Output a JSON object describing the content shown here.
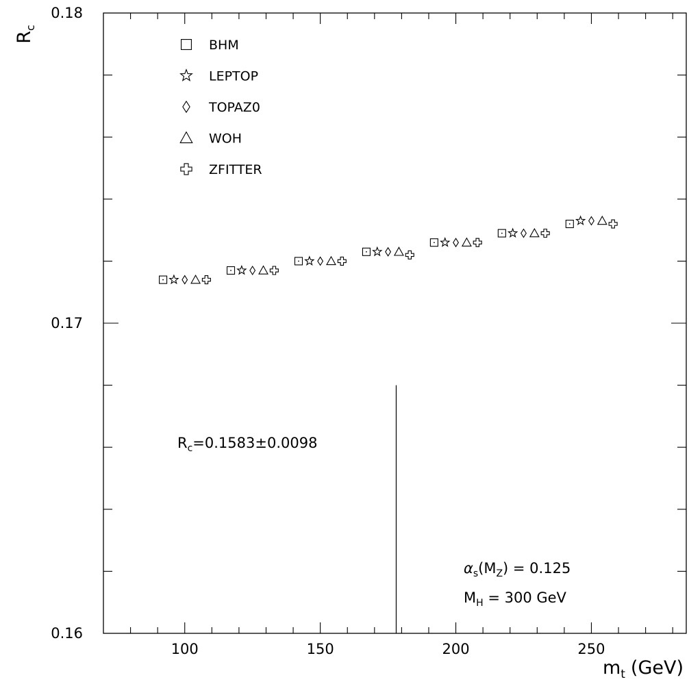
{
  "chart_data": {
    "type": "scatter",
    "ylabel_main": "R",
    "ylabel_sub": "c",
    "xlabel_main": "m",
    "xlabel_sub": "t",
    "xlabel_unit": "(GeV)",
    "xlim": [
      70,
      285
    ],
    "ylim": [
      0.16,
      0.18
    ],
    "x_ticks": [
      "100",
      "150",
      "200",
      "250"
    ],
    "y_ticks": [
      "0.16",
      "0.17",
      "0.18"
    ],
    "legend_position": "top-left",
    "series": [
      {
        "name": "BHM",
        "marker": "square",
        "x": [
          92,
          117,
          142,
          167,
          192,
          217,
          242
        ],
        "y": [
          0.1714,
          0.1717,
          0.172,
          0.1723,
          0.1726,
          0.1729,
          0.1732
        ]
      },
      {
        "name": "LEPTOP",
        "marker": "star",
        "x": [
          96,
          121,
          146,
          171,
          196,
          221,
          246
        ],
        "y": [
          0.1714,
          0.1717,
          0.172,
          0.1723,
          0.1726,
          0.1729,
          0.1733
        ]
      },
      {
        "name": "TOPAZ0",
        "marker": "diamond",
        "x": [
          100,
          125,
          150,
          175,
          200,
          225,
          250
        ],
        "y": [
          0.1714,
          0.1717,
          0.172,
          0.1723,
          0.1726,
          0.1729,
          0.1733
        ]
      },
      {
        "name": "WOH",
        "marker": "triangle",
        "x": [
          104,
          129,
          154,
          179,
          204,
          229,
          254
        ],
        "y": [
          0.1714,
          0.1717,
          0.172,
          0.1723,
          0.1726,
          0.1729,
          0.1733
        ]
      },
      {
        "name": "ZFITTER",
        "marker": "cross",
        "x": [
          108,
          133,
          158,
          183,
          208,
          233,
          258
        ],
        "y": [
          0.1714,
          0.1717,
          0.172,
          0.1722,
          0.1726,
          0.1729,
          0.1732
        ]
      }
    ],
    "reference_line": {
      "x": 178,
      "y_from": 0.16,
      "y_to": 0.168
    },
    "annotations": {
      "measurement_main": "R",
      "measurement_sub": "c",
      "measurement_value": "=0.1583±0.0098",
      "alpha_main": "α",
      "alpha_sub": "s",
      "alpha_arg_open": "(M",
      "alpha_arg_sub": "Z",
      "alpha_value": ") = 0.125",
      "higgs_main": "M",
      "higgs_sub": "H",
      "higgs_value": " = 300 GeV"
    }
  }
}
